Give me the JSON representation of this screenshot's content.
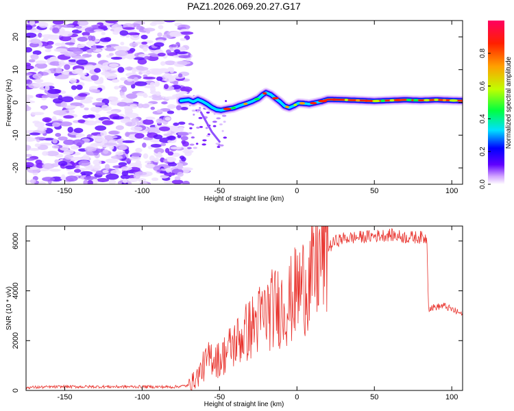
{
  "title": "PAZ1.2026.069.20.27.G17",
  "chart_data": [
    {
      "type": "heatmap",
      "xlabel": "Height of straight line (km)",
      "ylabel": "Frequency (Hz)",
      "xlim": [
        -175,
        107
      ],
      "ylim": [
        -25,
        25
      ],
      "xticks": [
        -150,
        -100,
        -50,
        0,
        50,
        100
      ],
      "yticks": [
        -20,
        -10,
        0,
        10,
        20
      ],
      "colorbar": {
        "label": "Normalized spectral amplitude",
        "range": [
          0,
          1
        ],
        "ticks": [
          0.0,
          0.2,
          0.4,
          0.6,
          0.8
        ],
        "tick_labels": [
          "0.0",
          "0.2",
          "0.4",
          "0.6",
          "0.8"
        ],
        "stops": [
          "#ffffff",
          "#d0a0ff",
          "#6000ff",
          "#0000ff",
          "#00e0ff",
          "#00ff40",
          "#c0ff00",
          "#ffa000",
          "#ff2000",
          "#ff0060"
        ]
      },
      "ridge": [
        {
          "x": -75,
          "f": 0.5
        },
        {
          "x": -70,
          "f": 0.8
        },
        {
          "x": -67,
          "f": 0.2
        },
        {
          "x": -64,
          "f": 0.9
        },
        {
          "x": -61,
          "f": 0.3
        },
        {
          "x": -58,
          "f": -0.5
        },
        {
          "x": -55,
          "f": -1.5
        },
        {
          "x": -52,
          "f": -2.2
        },
        {
          "x": -49,
          "f": -2.4
        },
        {
          "x": -45,
          "f": -2.0
        },
        {
          "x": -41,
          "f": -1.7
        },
        {
          "x": -37,
          "f": -1.0
        },
        {
          "x": -33,
          "f": -0.4
        },
        {
          "x": -29,
          "f": 0.3
        },
        {
          "x": -25,
          "f": 1.2
        },
        {
          "x": -22,
          "f": 2.4
        },
        {
          "x": -20,
          "f": 3.0
        },
        {
          "x": -17,
          "f": 2.4
        },
        {
          "x": -14,
          "f": 1.3
        },
        {
          "x": -11,
          "f": 0.2
        },
        {
          "x": -8,
          "f": -1.1
        },
        {
          "x": -5,
          "f": -1.6
        },
        {
          "x": -2,
          "f": -1.0
        },
        {
          "x": 1,
          "f": -0.2
        },
        {
          "x": 4,
          "f": -0.3
        },
        {
          "x": 8,
          "f": -0.5
        },
        {
          "x": 12,
          "f": -0.1
        },
        {
          "x": 16,
          "f": 0.3
        },
        {
          "x": 20,
          "f": 0.9
        },
        {
          "x": 30,
          "f": 0.8
        },
        {
          "x": 40,
          "f": 0.6
        },
        {
          "x": 50,
          "f": 0.4
        },
        {
          "x": 60,
          "f": 0.6
        },
        {
          "x": 70,
          "f": 0.8
        },
        {
          "x": 80,
          "f": 0.6
        },
        {
          "x": 90,
          "f": 0.8
        },
        {
          "x": 100,
          "f": 0.6
        },
        {
          "x": 107,
          "f": 0.5
        }
      ]
    },
    {
      "type": "line",
      "xlabel": "Height of straight line (km)",
      "ylabel": "SNR (10 * v/v)",
      "xlim": [
        -175,
        107
      ],
      "ylim": [
        0,
        6600
      ],
      "xticks": [
        -150,
        -100,
        -50,
        0,
        50,
        100
      ],
      "yticks": [
        0,
        2000,
        4000,
        6000
      ],
      "color": "#e8302a",
      "trend": [
        {
          "x": -175,
          "y": 120
        },
        {
          "x": -150,
          "y": 150
        },
        {
          "x": -100,
          "y": 150
        },
        {
          "x": -80,
          "y": 140
        },
        {
          "x": -70,
          "y": 200
        },
        {
          "x": -65,
          "y": 500
        },
        {
          "x": -60,
          "y": 1000
        },
        {
          "x": -55,
          "y": 1400
        },
        {
          "x": -50,
          "y": 1200
        },
        {
          "x": -45,
          "y": 1600
        },
        {
          "x": -40,
          "y": 1900
        },
        {
          "x": -35,
          "y": 2200
        },
        {
          "x": -30,
          "y": 2500
        },
        {
          "x": -25,
          "y": 2800
        },
        {
          "x": -20,
          "y": 3100
        },
        {
          "x": -15,
          "y": 3300
        },
        {
          "x": -10,
          "y": 3400
        },
        {
          "x": -5,
          "y": 3500
        },
        {
          "x": 0,
          "y": 4000
        },
        {
          "x": 5,
          "y": 4300
        },
        {
          "x": 10,
          "y": 4500
        },
        {
          "x": 15,
          "y": 5300
        },
        {
          "x": 20,
          "y": 5700
        },
        {
          "x": 25,
          "y": 6000
        },
        {
          "x": 30,
          "y": 6100
        },
        {
          "x": 40,
          "y": 6150
        },
        {
          "x": 50,
          "y": 6200
        },
        {
          "x": 60,
          "y": 6250
        },
        {
          "x": 70,
          "y": 6150
        },
        {
          "x": 80,
          "y": 6150
        },
        {
          "x": 84,
          "y": 6100
        },
        {
          "x": 85,
          "y": 3300
        },
        {
          "x": 90,
          "y": 3350
        },
        {
          "x": 95,
          "y": 3400
        },
        {
          "x": 100,
          "y": 3250
        },
        {
          "x": 107,
          "y": 3050
        }
      ]
    }
  ]
}
